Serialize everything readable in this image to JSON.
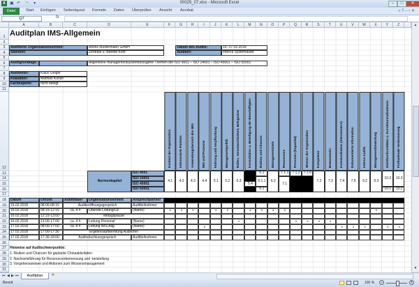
{
  "window": {
    "title": "00025_07.xlsx - Microsoft Excel",
    "app_icon": "excel-icon",
    "buttons": [
      "minimize",
      "maximize",
      "close"
    ]
  },
  "ribbon": {
    "tabs": [
      "Datei",
      "Start",
      "Einfügen",
      "Seitenlayout",
      "Formeln",
      "Daten",
      "Überprüfen",
      "Ansicht",
      "Acrobat"
    ]
  },
  "formula_bar": {
    "name_box": "Q7",
    "fx": "fx",
    "value": ""
  },
  "columns": [
    "A",
    "B",
    "C",
    "D",
    "E",
    "F",
    "G",
    "H",
    "I",
    "J",
    "K",
    "L",
    "M",
    "N",
    "O",
    "P",
    "Q",
    "R",
    "S",
    "T",
    "U",
    "V",
    "W",
    "X",
    "Y",
    "Z"
  ],
  "rows": [
    1,
    2,
    3,
    4,
    5,
    6,
    7,
    8,
    9,
    10,
    11,
    12,
    13,
    14,
    15,
    16,
    17,
    18,
    19,
    20,
    21,
    22,
    23,
    24,
    25,
    26,
    27,
    28,
    29,
    30,
    31
  ],
  "cells": [
    {
      "ref": "A1:D1",
      "text": "Auditplan IMS-Allgemein",
      "style": "title"
    },
    {
      "ref": "A3:C3",
      "text": "Auditierte Organisationseinheit:",
      "style": "label"
    },
    {
      "ref": "D3:E3",
      "text": "Alfons Mustermann GmbH",
      "style": "value"
    },
    {
      "ref": "G3:J3",
      "text": "Datum des Audits:",
      "style": "label"
    },
    {
      "ref": "K3:N3",
      "text": "16.-17.02.2018",
      "style": "value"
    },
    {
      "ref": "A4:C4",
      "text": "Standort:",
      "style": "label"
    },
    {
      "ref": "D4:E4",
      "text": "Zentrale u. Betrieb Köln",
      "style": "value"
    },
    {
      "ref": "G4:J4",
      "text": "Auditort:",
      "style": "label"
    },
    {
      "ref": "K4:N4",
      "text": "Interca Systemaudit",
      "style": "value"
    },
    {
      "ref": "A6",
      "text": "Auditgrundlage:",
      "style": "label"
    },
    {
      "ref": "B6:C6",
      "text": "",
      "style": "label"
    },
    {
      "ref": "D6:N6",
      "text": "Allgemeine managementsystembezogene Themen der ISO 9001 – ISO 14001 – ISO 45001 – ISO 50001",
      "style": "value"
    },
    {
      "ref": "A8",
      "text": "Auditleiter:",
      "style": "label"
    },
    {
      "ref": "B8:C8",
      "text": "Klaus Geiger",
      "style": "value"
    },
    {
      "ref": "A9",
      "text": "Koauditor:",
      "style": "label"
    },
    {
      "ref": "B9:C9",
      "text": "Mathias Kunze",
      "style": "value"
    },
    {
      "ref": "A10",
      "text": "Fachexperte:",
      "style": "label"
    },
    {
      "ref": "B10:C10",
      "text": "nicht belegt",
      "style": "value"
    },
    {
      "ref": "F12",
      "text": "Kontext der Organisation",
      "style": "vert"
    },
    {
      "ref": "G12",
      "text": "Interessierte Parteien",
      "style": "vert"
    },
    {
      "ref": "H12",
      "text": "Anwendungsbereich des IMS",
      "style": "vert"
    },
    {
      "ref": "I12",
      "text": "IMS und Prozesse",
      "style": "vert"
    },
    {
      "ref": "J12",
      "text": "Führung und Verpflichtung",
      "style": "vert"
    },
    {
      "ref": "K12",
      "text": "Managementpolitik",
      "style": "vert"
    },
    {
      "ref": "L12",
      "text": "Rollen, Verantwortlichkeit, Befugnisse",
      "style": "vert"
    },
    {
      "ref": "M12",
      "text": "Konsultation u. Beteiligung der Beschäftigten",
      "style": "vert"
    },
    {
      "ref": "N12",
      "text": "Risiken und Chancen",
      "style": "vert"
    },
    {
      "ref": "O12",
      "text": "Managementziele",
      "style": "vert"
    },
    {
      "ref": "P12",
      "text": "Ressourcen",
      "style": "vert"
    },
    {
      "ref": "Q12",
      "text": "Personen (Kapazität)",
      "style": "vert"
    },
    {
      "ref": "R12",
      "text": "Wissen der Organisation",
      "style": "vert"
    },
    {
      "ref": "S12",
      "text": "Kompetenz",
      "style": "vert"
    },
    {
      "ref": "T12",
      "text": "Bewusstsein",
      "style": "vert"
    },
    {
      "ref": "U12",
      "text": "Kommunikation (intern/extern)",
      "style": "vert"
    },
    {
      "ref": "V12",
      "text": "Dokumentierte Information",
      "style": "vert"
    },
    {
      "ref": "W12",
      "text": "Interne Audits",
      "style": "vert"
    },
    {
      "ref": "X12",
      "text": "Managementbewertung",
      "style": "vert"
    },
    {
      "ref": "Y12",
      "text": "Nichtkonformitäten u. Korrekturmaßnahmen",
      "style": "vert"
    },
    {
      "ref": "Z12",
      "text": "Fortlaufende Verbesserung",
      "style": "vert"
    },
    {
      "ref": "D13:D16",
      "text": "Normenkapitel",
      "style": "hdrc"
    },
    {
      "ref": "E13",
      "text": "ISO  9001",
      "style": "label"
    },
    {
      "ref": "E14",
      "text": "ISO 14001",
      "style": "label"
    },
    {
      "ref": "E15",
      "text": "ISO 45001",
      "style": "label"
    },
    {
      "ref": "E16",
      "text": "ISO 50001",
      "style": "label"
    },
    {
      "ref": "F13:F16",
      "text": "4.1",
      "style": "num"
    },
    {
      "ref": "G13:G16",
      "text": "4.2",
      "style": "num"
    },
    {
      "ref": "H13:H16",
      "text": "4.3",
      "style": "num"
    },
    {
      "ref": "I13:I16",
      "text": "4.4",
      "style": "num"
    },
    {
      "ref": "J13:J16",
      "text": "5.1",
      "style": "num"
    },
    {
      "ref": "K13:K16",
      "text": "5.2",
      "style": "num"
    },
    {
      "ref": "L13:L16",
      "text": "5.3",
      "style": "num"
    },
    {
      "ref": "M13:M14",
      "text": "",
      "style": "black"
    },
    {
      "ref": "M15",
      "text": "5.4",
      "style": "num"
    },
    {
      "ref": "M16",
      "text": "",
      "style": "black"
    },
    {
      "ref": "N13",
      "text": "6.1",
      "style": "num"
    },
    {
      "ref": "N14:N15",
      "text": "6.1.1",
      "style": "num"
    },
    {
      "ref": "N16",
      "text": "6.1",
      "style": "num"
    },
    {
      "ref": "O13:O16",
      "text": "6.2",
      "style": "num"
    },
    {
      "ref": "P13",
      "text": "7.1.1",
      "style": "num"
    },
    {
      "ref": "P14:P16",
      "text": "7.1",
      "style": "num"
    },
    {
      "ref": "Q13",
      "text": "7.1.2",
      "style": "num"
    },
    {
      "ref": "Q14:Q16",
      "text": "",
      "style": "black"
    },
    {
      "ref": "R13",
      "text": "7.1.6",
      "style": "num"
    },
    {
      "ref": "R14:R16",
      "text": "",
      "style": "black"
    },
    {
      "ref": "S13:S16",
      "text": "7.2",
      "style": "num"
    },
    {
      "ref": "T13:T16",
      "text": "7.3",
      "style": "num"
    },
    {
      "ref": "U13:U16",
      "text": "7.4",
      "style": "num"
    },
    {
      "ref": "V13:V16",
      "text": "7.5",
      "style": "num"
    },
    {
      "ref": "W13:W16",
      "text": "9.2",
      "style": "num"
    },
    {
      "ref": "X13:X16",
      "text": "9.3",
      "style": "num"
    },
    {
      "ref": "Y13:Y15",
      "text": "10.2",
      "style": "num"
    },
    {
      "ref": "Y16",
      "text": "10.1",
      "style": "num"
    },
    {
      "ref": "Z13:Z15",
      "text": "10.3",
      "style": "num"
    },
    {
      "ref": "Z16",
      "text": "10.2",
      "style": "num"
    },
    {
      "ref": "A18",
      "text": "Datum",
      "style": "hdr"
    },
    {
      "ref": "B18",
      "text": "Uhrzeit",
      "style": "hdr"
    },
    {
      "ref": "C18",
      "text": "Auditdauer",
      "style": "hdr"
    },
    {
      "ref": "D18",
      "text": "Organisationseinheit",
      "style": "hdr"
    },
    {
      "ref": "E18",
      "text": "Ansprechpartner",
      "style": "hdr"
    },
    {
      "ref": "F18:Z18",
      "text": "",
      "style": "black"
    },
    {
      "ref": "A19",
      "text": "16.02.2018",
      "style": "tcell"
    },
    {
      "ref": "B19",
      "text": "08:00-08:15",
      "style": "tcell"
    },
    {
      "ref": "C19:D19",
      "text": "Auditeröffnungsgespräch",
      "style": "tcenter"
    },
    {
      "ref": "E19",
      "text": "Auditteilnehmer",
      "style": "tcell"
    },
    {
      "ref": "A20",
      "text": "16.02.2018",
      "style": "tcell"
    },
    {
      "ref": "B20",
      "text": "08:15-12:15",
      "style": "tcell"
    },
    {
      "ref": "C20",
      "text": "ca. 4 h",
      "style": "tcenter"
    },
    {
      "ref": "D20",
      "text": "Oberste Leitung/GF",
      "style": "tcell"
    },
    {
      "ref": "E20",
      "text": "(Name)",
      "style": "tcell"
    },
    {
      "ref": "A21",
      "text": "16.02.2018",
      "style": "tcell"
    },
    {
      "ref": "B21",
      "text": "12:15-13:00",
      "style": "tcell"
    },
    {
      "ref": "C21:E21",
      "text": "Mittagspause",
      "style": "tcenter"
    },
    {
      "ref": "A22",
      "text": "16.02.2018",
      "style": "tcell"
    },
    {
      "ref": "B22",
      "text": "13:00-17:00",
      "style": "tcell"
    },
    {
      "ref": "C22",
      "text": "ca. 4 h",
      "style": "tcenter"
    },
    {
      "ref": "D22",
      "text": "Leitung Personal",
      "style": "tcell"
    },
    {
      "ref": "E22",
      "text": "(Name)",
      "style": "tcell"
    },
    {
      "ref": "A23",
      "text": "17.02.2018",
      "style": "tcell"
    },
    {
      "ref": "B23",
      "text": "08:00-17:00",
      "style": "tcell"
    },
    {
      "ref": "C23",
      "text": "ca. 8 h",
      "style": "tcenter"
    },
    {
      "ref": "D23",
      "text": "Leitung IMS-Allg.",
      "style": "tcell"
    },
    {
      "ref": "E23",
      "text": "(Name)",
      "style": "tcell"
    },
    {
      "ref": "A24",
      "text": "17.02.2018",
      "style": "tcell"
    },
    {
      "ref": "B24",
      "text": "17:00-17:30",
      "style": "tcell"
    },
    {
      "ref": "C24:E24",
      "text": "Ergebnisaufbereitung Auditoren",
      "style": "tcenter"
    },
    {
      "ref": "A25",
      "text": "17.02.2018",
      "style": "tcell"
    },
    {
      "ref": "B25",
      "text": "17:30-18:00",
      "style": "tcell"
    },
    {
      "ref": "C25:D25",
      "text": "Auditabschlussgespräch",
      "style": "tcenter"
    },
    {
      "ref": "E25",
      "text": "Auditteilnehmer",
      "style": "tcell"
    },
    {
      "ref": "A27",
      "text": "Hinweise auf Auditschwerpunkte:",
      "style": "bold"
    },
    {
      "ref": "A28",
      "text": "1. Risiken und Chancen für geplante Chinaaktivitäten",
      "style": "plain"
    },
    {
      "ref": "A29",
      "text": "2. Nachweisführung für Ressourcenbemessung und -beistellung",
      "style": "plain"
    },
    {
      "ref": "A30",
      "text": "3. Vorgehensweisen und Aktionen zum Wissensmanagement",
      "style": "plain"
    }
  ],
  "schedule_matrix": {
    "range": "F19:Z25",
    "mark": "x",
    "marked": [
      "F20",
      "G20",
      "H20",
      "J20",
      "K20",
      "M20",
      "N20",
      "O20",
      "P20",
      "X20",
      "L22",
      "Q22",
      "R22",
      "S22",
      "T22",
      "I23",
      "U23",
      "V23",
      "W23",
      "Y23",
      "Z23"
    ]
  },
  "sheet_tabs": {
    "active": "Auditplan",
    "new_sheet_icon": "insert-worksheet-icon"
  },
  "status_bar": {
    "status": "Bereit",
    "zoom": "100 %",
    "zoom_level_percent": 100,
    "minus": "−",
    "plus": "+"
  }
}
